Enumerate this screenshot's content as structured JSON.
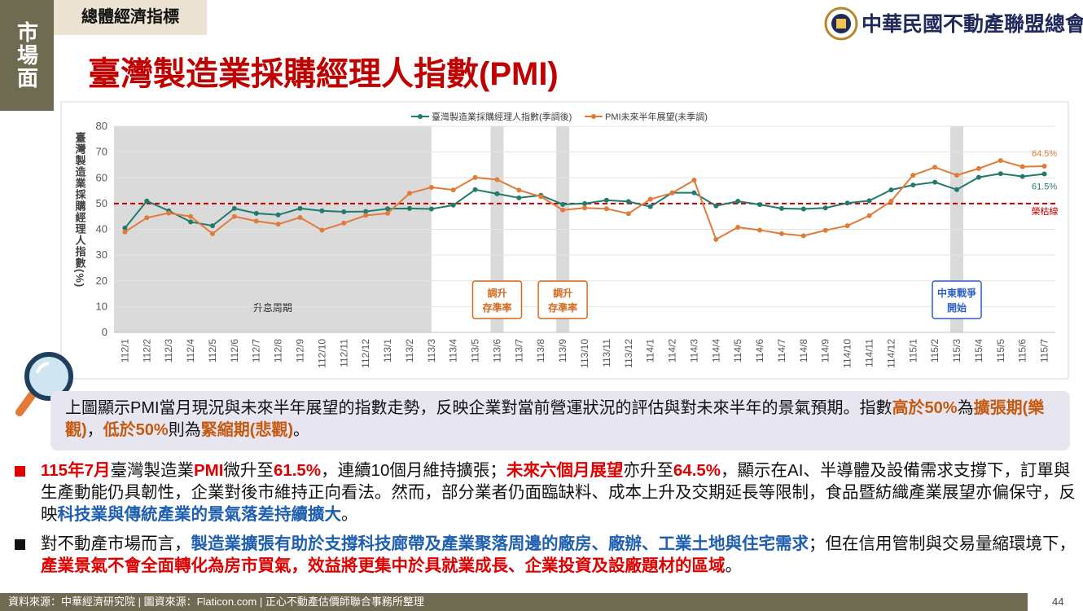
{
  "side_tab": "市場面",
  "section": "總體經濟指標",
  "logo": "中華民國不動產聯盟總會",
  "title": "臺灣製造業採購經理人指數(PMI)",
  "chart_data": {
    "type": "line",
    "y_label": "臺灣製造業採購經理人指數(%)",
    "categories": [
      "112/1",
      "112/2",
      "112/3",
      "112/4",
      "112/5",
      "112/6",
      "112/7",
      "112/8",
      "112/9",
      "112/10",
      "112/11",
      "112/12",
      "113/1",
      "113/2",
      "113/3",
      "113/4",
      "113/5",
      "113/6",
      "113/7",
      "113/8",
      "113/9",
      "113/10",
      "113/11",
      "113/12",
      "114/1",
      "114/2",
      "114/3",
      "114/4",
      "114/5",
      "114/6",
      "114/7",
      "114/8",
      "114/9",
      "114/10",
      "114/11",
      "114/12",
      "115/1",
      "115/2",
      "115/3",
      "115/4",
      "115/5",
      "115/6",
      "115/7"
    ],
    "series": [
      {
        "name": "臺灣製造業採購經理人指數(季調後)",
        "color": "#217a6b",
        "values": [
          40.5,
          51.0,
          47.2,
          42.9,
          41.4,
          48.1,
          46.2,
          45.6,
          48.1,
          47.2,
          46.8,
          46.9,
          48.0,
          48.1,
          47.9,
          49.4,
          55.4,
          53.8,
          52.2,
          53.2,
          49.7,
          50.0,
          51.3,
          50.8,
          48.8,
          54.2,
          54.2,
          49.1,
          50.9,
          49.6,
          48.1,
          47.9,
          48.3,
          50.2,
          51.1,
          55.3,
          57.2,
          58.3,
          55.4,
          60.2,
          61.6,
          60.5,
          61.5
        ],
        "value_labels": [
          null,
          null,
          null,
          null,
          null,
          null,
          null,
          null,
          null,
          null,
          null,
          null,
          null,
          null,
          null,
          null,
          null,
          null,
          null,
          null,
          null,
          null,
          null,
          null,
          null,
          null,
          null,
          null,
          null,
          null,
          null,
          null,
          null,
          null,
          null,
          null,
          null,
          null,
          null,
          null,
          null,
          null,
          "61.5%"
        ]
      },
      {
        "name": "PMI未來半年展望(未季調)",
        "color": "#e07b39",
        "values": [
          39.0,
          44.5,
          46.3,
          45.0,
          38.3,
          45.0,
          43.2,
          42.0,
          44.6,
          39.7,
          42.4,
          45.4,
          46.2,
          54.0,
          56.3,
          55.3,
          60.1,
          59.3,
          55.2,
          52.7,
          47.5,
          48.3,
          48.0,
          46.1,
          51.7,
          54.1,
          59.1,
          36.1,
          40.8,
          39.7,
          38.3,
          37.5,
          39.6,
          41.4,
          45.3,
          50.9,
          61.0,
          64.1,
          61.0,
          63.6,
          66.7,
          64.3,
          64.5
        ],
        "value_labels": [
          null,
          null,
          null,
          null,
          null,
          null,
          null,
          null,
          null,
          null,
          null,
          null,
          null,
          null,
          null,
          null,
          null,
          null,
          null,
          null,
          null,
          null,
          null,
          null,
          null,
          null,
          null,
          null,
          null,
          null,
          null,
          null,
          null,
          null,
          null,
          null,
          null,
          null,
          null,
          null,
          null,
          null,
          "64.5%"
        ]
      }
    ],
    "ylim": [
      0,
      80
    ],
    "yticks": [
      0,
      10,
      20,
      30,
      40,
      50,
      60,
      70,
      80
    ],
    "grid": true,
    "legend": "top",
    "reference_line": {
      "value": 50,
      "label": "榮枯線",
      "color": "#c00000"
    },
    "shaded": [
      {
        "from": "112/1",
        "to": "113/3",
        "label": "升息周期"
      },
      {
        "from": "113/6",
        "to": "113/6"
      },
      {
        "from": "113/9",
        "to": "113/9"
      },
      {
        "from": "115/3",
        "to": "115/3"
      }
    ],
    "annotations": [
      {
        "category": "113/6",
        "lines": [
          "調升",
          "存準率"
        ],
        "color": "#d2691e"
      },
      {
        "category": "113/9",
        "lines": [
          "調升",
          "存準率"
        ],
        "color": "#d2691e"
      },
      {
        "category": "115/3",
        "lines": [
          "中東戰爭",
          "開始"
        ],
        "color": "#2f5fbf"
      }
    ]
  },
  "summary": {
    "runs": [
      {
        "text": "上圖顯示PMI當月現況與未來半年展望的指數走勢，反映企業對當前營運狀況的評估與對未來半年的景氣預期。指數"
      },
      {
        "text": "高於50%",
        "emphasis": "#c55a11"
      },
      {
        "text": "為"
      },
      {
        "text": "擴張期(樂觀)",
        "emphasis": "#c55a11"
      },
      {
        "text": "，"
      },
      {
        "text": "低於50%",
        "emphasis": "#c55a11"
      },
      {
        "text": "則為"
      },
      {
        "text": "緊縮期(悲觀)",
        "emphasis": "#c55a11"
      },
      {
        "text": "。"
      }
    ]
  },
  "bullets": [
    {
      "marker": "#e00000",
      "runs": [
        {
          "text": "115年7月",
          "emphasis": "#e00000"
        },
        {
          "text": "臺灣製造業"
        },
        {
          "text": "PMI",
          "emphasis": "#e00000"
        },
        {
          "text": "微升至"
        },
        {
          "text": "61.5%",
          "emphasis": "#e00000"
        },
        {
          "text": "，連續10個月維持擴張；"
        },
        {
          "text": "未來六個月展望",
          "emphasis": "#e00000"
        },
        {
          "text": "亦升至"
        },
        {
          "text": "64.5%",
          "emphasis": "#e00000"
        },
        {
          "text": "，顯示在AI、半導體及設備需求支撐下，訂單與生產動能仍具韌性，企業對後市維持正向看法。然而，部分業者仍面臨缺料、成本上升及交期延長等限制，食品暨紡織產業展望亦偏保守，反映"
        },
        {
          "text": "科技業與傳統產業的景氣落差持續擴大",
          "emphasis": "#1f5fb0"
        },
        {
          "text": "。"
        }
      ]
    },
    {
      "marker": "#111111",
      "runs": [
        {
          "text": "對不動產市場而言，"
        },
        {
          "text": "製造業擴張有助於支撐科技廊帶及產業聚落周邊的廠房、廠辦、工業土地與住宅需求",
          "emphasis": "#1f5fb0"
        },
        {
          "text": "；但在信用管制與交易量縮環境下，"
        },
        {
          "text": "產業景氣不會全面轉化為房市買氣，效益將更集中於具就業成長、企業投資及設廠題材的區域",
          "emphasis": "#e00000"
        },
        {
          "text": "。"
        }
      ]
    }
  ],
  "footer": {
    "source": "資料來源：中華經濟研究院 | 圖資來源：Flaticon.com | 正心不動產估價師聯合事務所整理",
    "page": 44
  }
}
